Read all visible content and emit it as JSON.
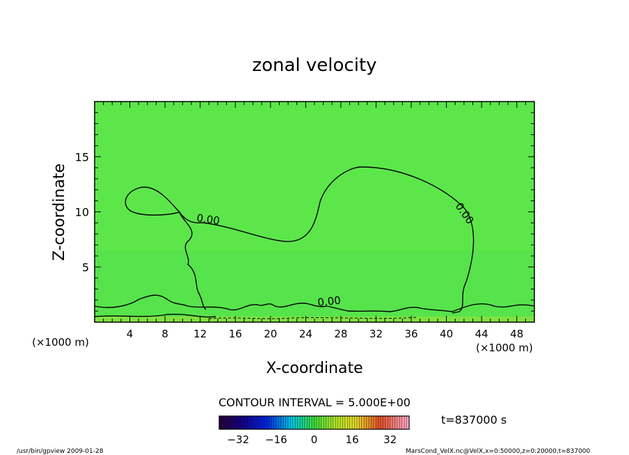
{
  "chart_data": {
    "type": "heatmap",
    "title": "zonal velocity",
    "xlabel": "X-coordinate",
    "ylabel": "Z-coordinate",
    "x_unit": "(×1000 m)",
    "y_unit": "(×1000 m)",
    "xlim": [
      0,
      50
    ],
    "ylim": [
      0,
      20
    ],
    "x_ticks": [
      "4",
      "8",
      "12",
      "16",
      "20",
      "24",
      "28",
      "32",
      "36",
      "40",
      "44",
      "48"
    ],
    "y_ticks": [
      "5",
      "10",
      "15"
    ],
    "contour_labels": [
      "0.00",
      "0.00",
      "0.00"
    ],
    "contour_interval": "CONTOUR INTERVAL = 5.000E+00",
    "colorbar": {
      "ticks": [
        "−32",
        "−16",
        "0",
        "16",
        "32"
      ],
      "min": -40,
      "max": 40
    },
    "time_label": "t=837000 s",
    "footer_left": "/usr/bin/gpview  2009-01-28",
    "footer_right": "MarsCond_VelX.nc@VelX,x=0:50000,z=0:20000,t=837000",
    "colors": {
      "background_field": "#5ce64a",
      "contour": "#000000"
    }
  }
}
